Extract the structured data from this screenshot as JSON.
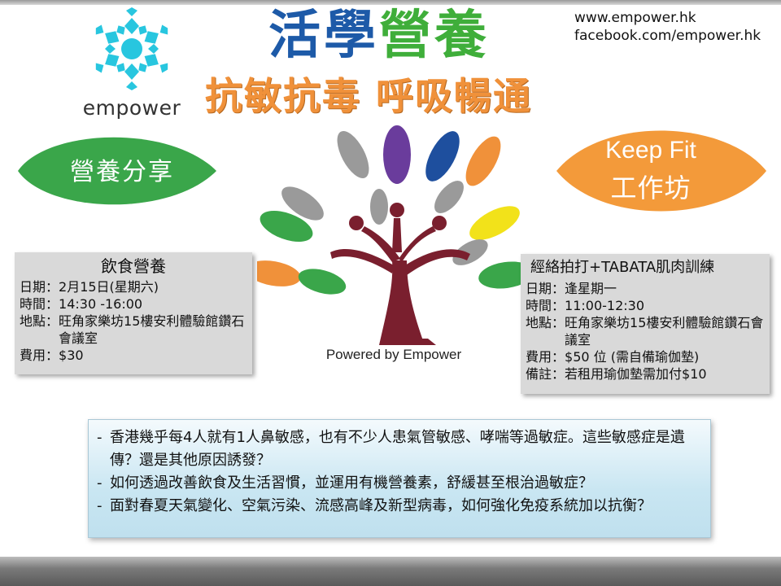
{
  "colors": {
    "title_blue": "#1d5aa8",
    "title_green": "#3fae3a",
    "subtitle_orange": "#f0913a",
    "leaf_green": "#3aa64a",
    "leaf_orange": "#f39a3a",
    "logo_cyan": "#28c6df",
    "tree_trunk": "#7a1f2e",
    "info_box_grey": "#d9d9d9",
    "question_box_blue": "#c9e6f2"
  },
  "logo": {
    "icon": "snowflake-logo-icon",
    "text": "empower"
  },
  "title": {
    "part1": "活學",
    "part2": "營養"
  },
  "subtitle": "抗敏抗毒 呼吸暢通",
  "contact": {
    "website": "www.empower.hk",
    "facebook": "facebook.com/empower.hk"
  },
  "leaf_left": {
    "label": "營養分享"
  },
  "leaf_right": {
    "line1": "Keep Fit",
    "line2": "工作坊"
  },
  "tree": {
    "icon": "tree-leaves-people-icon",
    "caption": "Powered by Empower"
  },
  "event_left": {
    "title": "飲食營養",
    "rows": [
      {
        "label": "日期：",
        "value": "2月15日(星期六)"
      },
      {
        "label": "時間：",
        "value": "14:30 -16:00"
      },
      {
        "label": "地點：",
        "value": "旺角家樂坊15樓安利體驗館鑽石會議室"
      },
      {
        "label": "費用：",
        "value": "$30"
      }
    ]
  },
  "event_right": {
    "title": "經絡拍打+TABATA肌肉訓練",
    "rows": [
      {
        "label": "日期：",
        "value": "逢星期一"
      },
      {
        "label": "時間：",
        "value": "11:00-12:30"
      },
      {
        "label": "地點：",
        "value": "旺角家樂坊15樓安利體驗館鑽石會議室"
      },
      {
        "label": "費用：",
        "value": "$50 位 (需自備瑜伽墊)"
      },
      {
        "label": "備註：",
        "value": "若租用瑜伽墊需加付$10"
      }
    ]
  },
  "questions": [
    {
      "dash": "-",
      "text": "香港幾乎每4人就有1人鼻敏感，也有不少人患氣管敏感、哮喘等過敏症。這些敏感症是遺傳？還是其他原因誘發？"
    },
    {
      "dash": "-",
      "text": "如何透過改善飲食及生活習慣，並運用有機營養素，舒緩甚至根治過敏症？"
    },
    {
      "dash": "-",
      "text": "面對春夏天氣變化、空氣污染、流感高峰及新型病毒，如何強化免疫系統加以抗衡？"
    }
  ]
}
